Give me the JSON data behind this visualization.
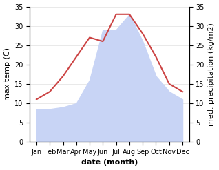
{
  "months": [
    "Jan",
    "Feb",
    "Mar",
    "Apr",
    "May",
    "Jun",
    "Jul",
    "Aug",
    "Sep",
    "Oct",
    "Nov",
    "Dec"
  ],
  "max_temp": [
    11,
    13,
    17,
    22,
    27,
    26,
    33,
    33,
    28,
    22,
    15,
    13
  ],
  "precipitation": [
    8.5,
    8.5,
    9,
    10,
    16,
    29,
    29,
    33,
    26,
    17,
    13,
    11
  ],
  "temp_color": "#cc4444",
  "precip_fill_color": "#c8d4f5",
  "temp_ylim": [
    0,
    35
  ],
  "precip_ylim": [
    0,
    35
  ],
  "xlabel": "date (month)",
  "ylabel_left": "max temp (C)",
  "ylabel_right": "med. precipitation (kg/m2)",
  "tick_fontsize": 7,
  "label_fontsize": 8,
  "bg_color": "#ffffff"
}
